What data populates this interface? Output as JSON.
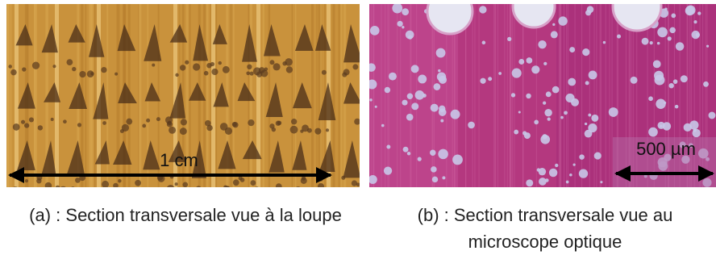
{
  "panels": [
    {
      "scale_label": "1 cm",
      "caption": "(a) : Section transversale vue à la loupe"
    },
    {
      "scale_label": "500 µm",
      "caption": "(b) : Section transversale vue au microscope optique"
    }
  ]
}
